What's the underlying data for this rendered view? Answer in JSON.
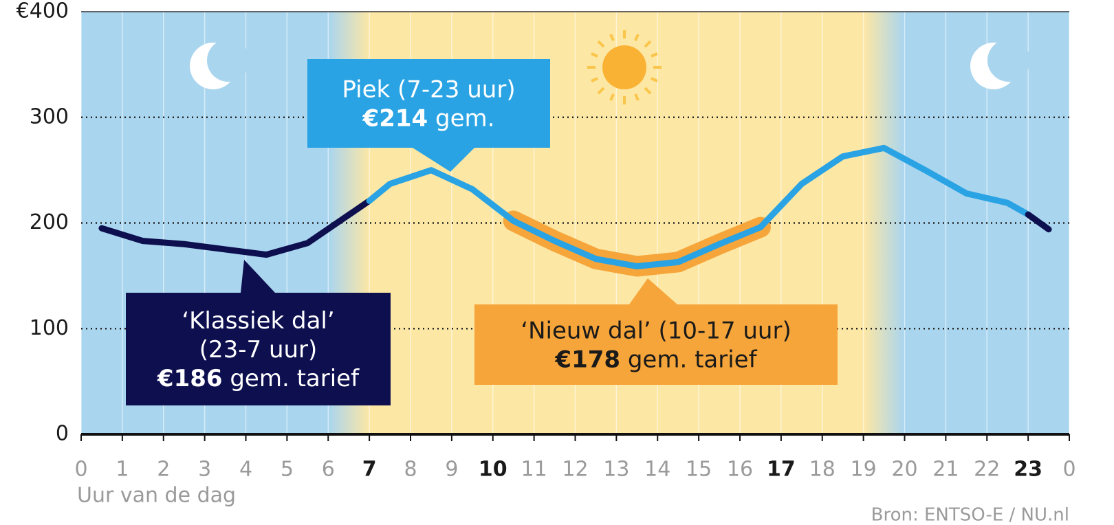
{
  "chart_data": {
    "type": "line",
    "xlabel": "Uur van de dag",
    "source": "Bron: ENTSO-E / NU.nl",
    "xlim": [
      0,
      24
    ],
    "ylim": [
      0,
      400
    ],
    "xticks": [
      0,
      1,
      2,
      3,
      4,
      5,
      6,
      7,
      8,
      9,
      10,
      11,
      12,
      13,
      14,
      15,
      16,
      17,
      18,
      19,
      20,
      21,
      22,
      23,
      {
        "value": 24,
        "label": "0"
      }
    ],
    "xticks_bold": [
      7,
      10,
      17,
      23
    ],
    "yticks": [
      0,
      100,
      200,
      300,
      {
        "value": 400,
        "label": "€400"
      }
    ],
    "grid": true,
    "series": [
      {
        "color": "#f6a53a",
        "width": 30,
        "x": [
          10.5,
          11.5,
          12.5,
          13.5,
          14.5,
          15.5,
          16.5
        ],
        "values": [
          202,
          183,
          166,
          159,
          163,
          180,
          196
        ]
      },
      {
        "color": "#0d0f4f",
        "width": 9,
        "x": [
          0.5,
          1.5,
          2.5,
          3.5,
          4.5,
          5.5,
          7
        ],
        "values": [
          195,
          183,
          180,
          175,
          170,
          181,
          221
        ]
      },
      {
        "color": "#29a3e3",
        "width": 9,
        "x": [
          7,
          7.5,
          8.5,
          9.5,
          10.5,
          11.5,
          12.5,
          13.5,
          14.5,
          15.5,
          16.5,
          17.5,
          18.5,
          19.5,
          20.5,
          21.5,
          22.5,
          23
        ],
        "values": [
          221,
          237,
          250,
          232,
          202,
          183,
          166,
          159,
          163,
          180,
          196,
          237,
          263,
          271,
          250,
          228,
          219,
          208
        ]
      },
      {
        "color": "#0d0f4f",
        "width": 9,
        "x": [
          23,
          23.5
        ],
        "values": [
          208,
          194
        ]
      }
    ],
    "annotations": [
      {
        "color": "#29a3e3",
        "text_color": "#ffffff",
        "lines": [
          [
            {
              "text": "Piek (7-23 uur)"
            }
          ],
          [
            {
              "text": "€214",
              "bold": true
            },
            {
              "text": " gem."
            }
          ]
        ]
      },
      {
        "color": "#0d0f4f",
        "text_color": "#ffffff",
        "lines": [
          [
            {
              "text": "‘Klassiek dal’"
            }
          ],
          [
            {
              "text": "(23-7 uur)"
            }
          ],
          [
            {
              "text": "€186",
              "bold": true
            },
            {
              "text": " gem. tarief"
            }
          ]
        ]
      },
      {
        "color": "#f6a53a",
        "text_color": "#1a1a1a",
        "lines": [
          [
            {
              "text": "‘Nieuw dal’ (10-17 uur)"
            }
          ],
          [
            {
              "text": "€178",
              "bold": true
            },
            {
              "text": " gem. tarief"
            }
          ]
        ]
      }
    ]
  }
}
